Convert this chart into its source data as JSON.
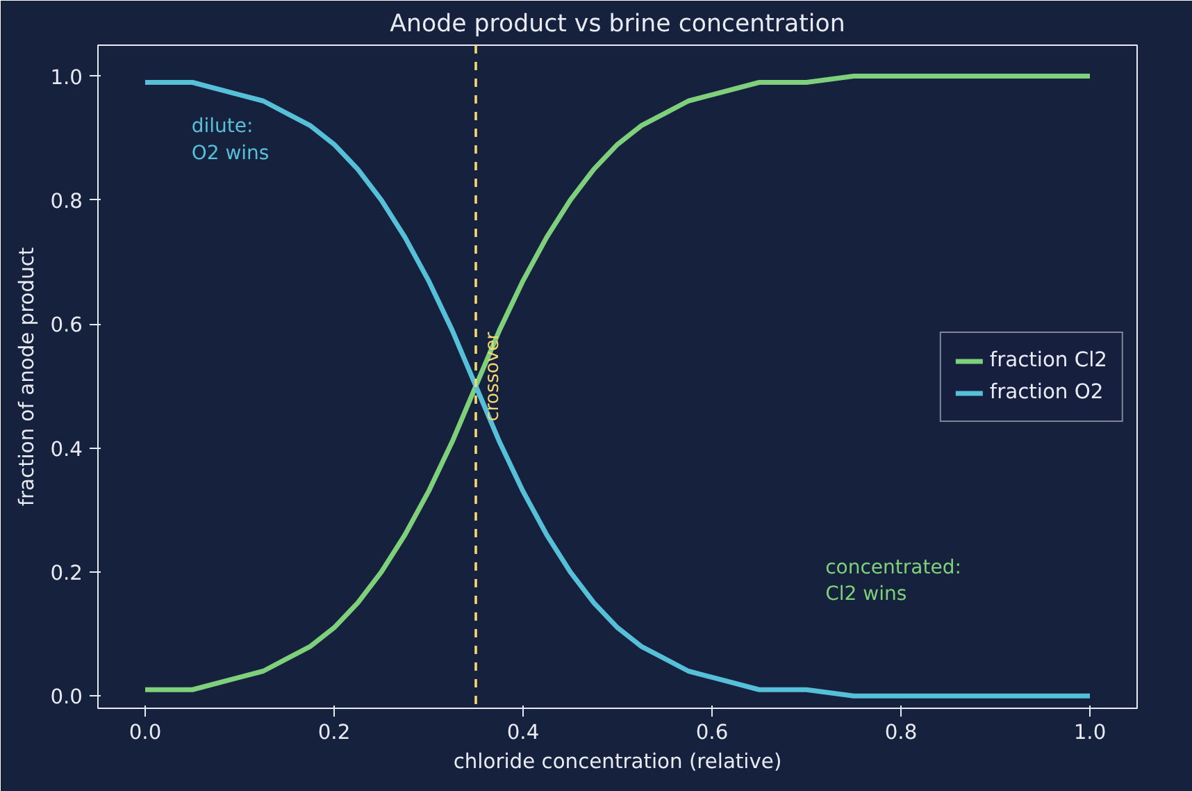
{
  "chart_data": {
    "type": "line",
    "title": "Anode product vs brine concentration",
    "xlabel": "chloride concentration (relative)",
    "ylabel": "fraction of anode product",
    "x": [
      0,
      0.05,
      0.1,
      0.125,
      0.15,
      0.175,
      0.2,
      0.225,
      0.25,
      0.275,
      0.3,
      0.325,
      0.35,
      0.375,
      0.4,
      0.425,
      0.45,
      0.475,
      0.5,
      0.525,
      0.55,
      0.575,
      0.6,
      0.65,
      0.7,
      0.75,
      0.8,
      0.85,
      0.9,
      0.95,
      1.0
    ],
    "series": [
      {
        "name": "fraction Cl2",
        "color": "#7fd07a",
        "values": [
          0.01,
          0.01,
          0.03,
          0.04,
          0.06,
          0.08,
          0.11,
          0.15,
          0.2,
          0.26,
          0.33,
          0.41,
          0.5,
          0.59,
          0.67,
          0.74,
          0.8,
          0.85,
          0.89,
          0.92,
          0.94,
          0.96,
          0.97,
          0.99,
          0.99,
          1.0,
          1.0,
          1.0,
          1.0,
          1.0,
          1.0
        ]
      },
      {
        "name": "fraction O2",
        "color": "#56c0d8",
        "values": [
          0.99,
          0.99,
          0.97,
          0.96,
          0.94,
          0.92,
          0.89,
          0.85,
          0.8,
          0.74,
          0.67,
          0.59,
          0.5,
          0.41,
          0.33,
          0.26,
          0.2,
          0.15,
          0.11,
          0.08,
          0.06,
          0.04,
          0.03,
          0.01,
          0.01,
          0.0,
          0.0,
          0.0,
          0.0,
          0.0,
          0.0
        ]
      }
    ],
    "xlim": [
      -0.05,
      1.05
    ],
    "ylim": [
      -0.02,
      1.05
    ],
    "xticks": [
      {
        "value": 0,
        "label": "0.0"
      },
      0.2,
      0.4,
      0.6,
      0.8,
      {
        "value": 1,
        "label": "1.0"
      }
    ],
    "yticks": [
      {
        "value": 0,
        "label": "0.0"
      },
      0.2,
      0.4,
      0.6,
      0.8,
      {
        "value": 1,
        "label": "1.0"
      }
    ],
    "ref_lines": [
      {
        "axis": "x",
        "value": 0.35,
        "label": "crossover",
        "color": "#f5d76e",
        "line_style": "dashed"
      }
    ],
    "annotations": [
      "dilute:\nO2 wins",
      "concentrated:\nCl2 wins"
    ],
    "legend": "center right",
    "grid": false,
    "line_style": "solid",
    "marker": "none"
  }
}
